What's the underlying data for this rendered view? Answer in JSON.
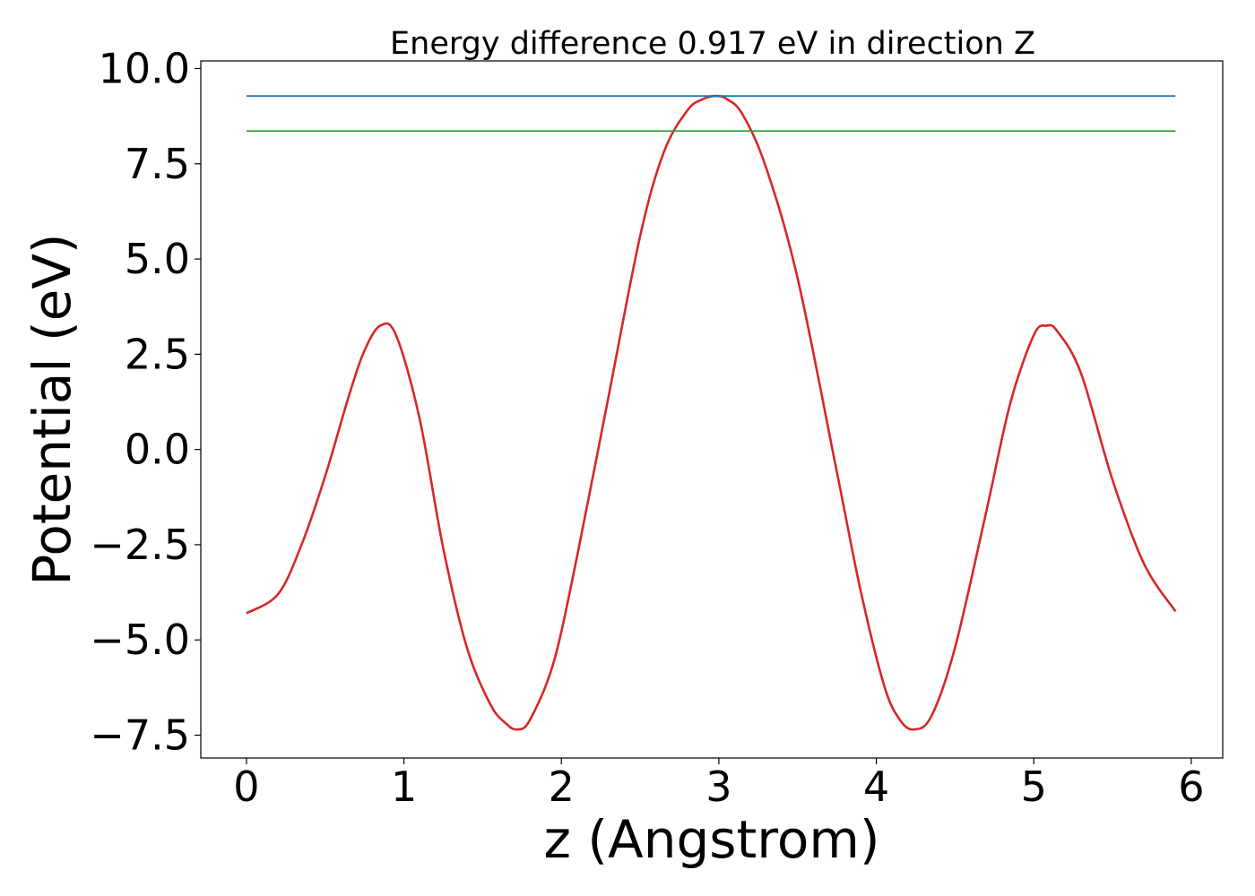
{
  "chart_data": {
    "type": "line",
    "title": "Energy difference 0.917 eV in direction Z",
    "xlabel": "z (Angstrom)",
    "ylabel": "Potential (eV)",
    "xlim": [
      -0.29,
      6.2
    ],
    "ylim": [
      -8.1,
      10.2
    ],
    "xticks": [
      0,
      1,
      2,
      3,
      4,
      5,
      6
    ],
    "xtick_labels": [
      "0",
      "1",
      "2",
      "3",
      "4",
      "5",
      "6"
    ],
    "yticks": [
      -7.5,
      -5.0,
      -2.5,
      0.0,
      2.5,
      5.0,
      7.5,
      10.0
    ],
    "ytick_labels": [
      "−7.5",
      "−5.0",
      "−2.5",
      "0.0",
      "2.5",
      "5.0",
      "7.5",
      "10.0"
    ],
    "grid": false,
    "series": [
      {
        "color": "#d62728",
        "x": [
          0.0,
          0.2,
          0.35,
          0.5,
          0.65,
          0.75,
          0.85,
          0.95,
          1.1,
          1.25,
          1.4,
          1.55,
          1.65,
          1.72,
          1.8,
          1.95,
          2.1,
          2.3,
          2.5,
          2.65,
          2.8,
          2.9,
          2.98,
          3.05,
          3.15,
          3.3,
          3.5,
          3.75,
          3.9,
          4.05,
          4.15,
          4.24,
          4.35,
          4.5,
          4.7,
          4.85,
          5.0,
          5.08,
          5.15,
          5.3,
          5.5,
          5.7,
          5.9
        ],
        "y": [
          -4.3,
          -3.8,
          -2.5,
          -0.7,
          1.4,
          2.6,
          3.25,
          3.0,
          0.8,
          -2.6,
          -5.2,
          -6.7,
          -7.2,
          -7.35,
          -7.1,
          -5.6,
          -2.8,
          1.4,
          5.6,
          7.8,
          8.9,
          9.2,
          9.28,
          9.2,
          8.8,
          7.4,
          4.5,
          -0.6,
          -3.7,
          -6.2,
          -7.1,
          -7.35,
          -7.0,
          -5.2,
          -1.6,
          1.2,
          3.0,
          3.25,
          3.1,
          2.0,
          -0.8,
          -3.0,
          -4.25
        ]
      },
      {
        "color": "#1f77b4",
        "x": [
          0.0,
          5.9
        ],
        "y": [
          9.28,
          9.28
        ]
      },
      {
        "color": "#2ca02c",
        "x": [
          0.0,
          5.9
        ],
        "y": [
          8.36,
          8.36
        ]
      }
    ]
  }
}
